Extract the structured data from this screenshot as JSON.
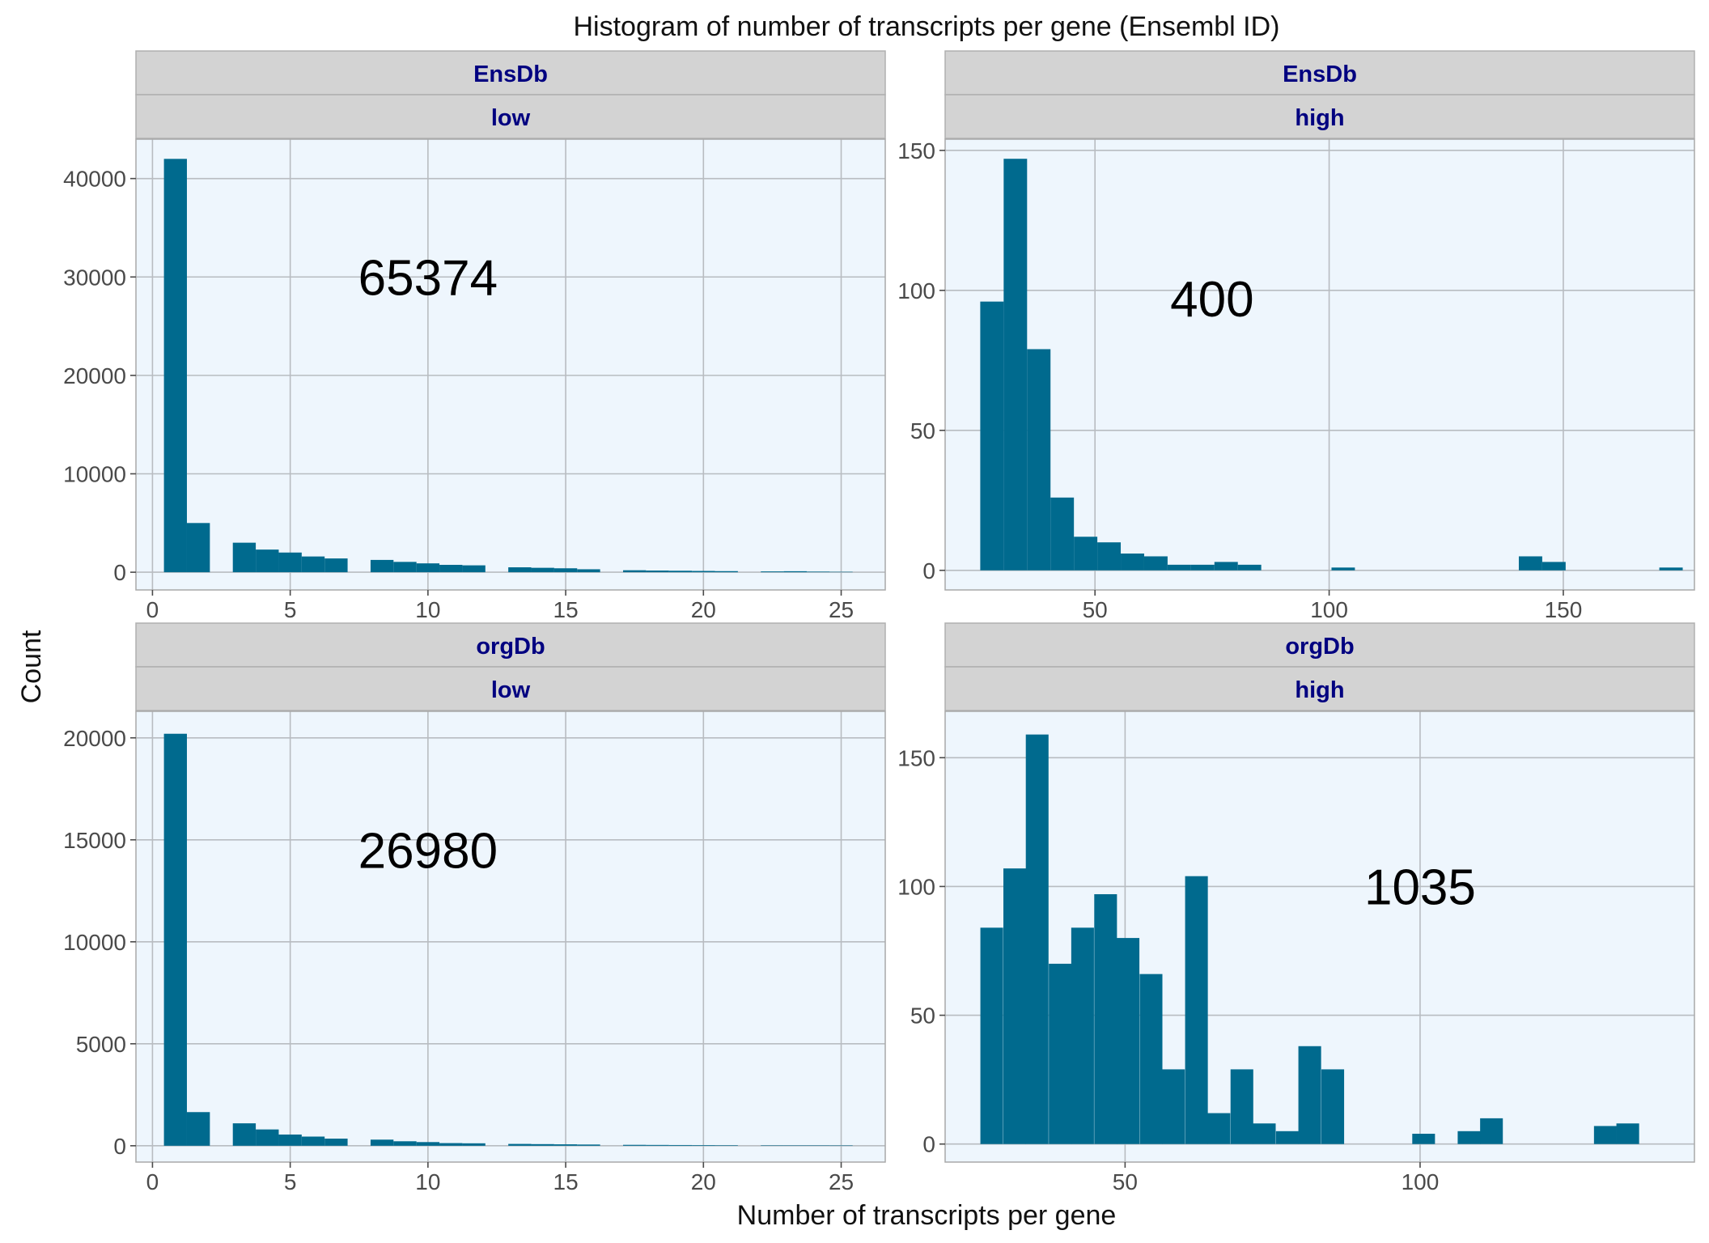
{
  "chart_data": {
    "type": "bar",
    "title": "Histogram of number of transcripts per gene (Ensembl ID)",
    "xlabel": "Number of transcripts per gene",
    "ylabel": "Count",
    "bar_color": "#006a8e",
    "panel_background": "#eef6fd",
    "strip_text_color": "#000080",
    "grid": true,
    "panels": [
      {
        "strip_top": "EnsDb",
        "strip_bottom": "low",
        "annotation": "65374",
        "annotation_at": {
          "x": 10,
          "y": 30000
        },
        "xlim": [
          -0.6,
          26.6
        ],
        "ylim": [
          -1800,
          44000
        ],
        "x_ticks": [
          0,
          5,
          10,
          15,
          20,
          25
        ],
        "y_ticks": [
          0,
          10000,
          20000,
          30000,
          40000
        ],
        "bin_width": 0.8333,
        "bins": [
          {
            "x": 0.8333,
            "count": 42000
          },
          {
            "x": 1.6667,
            "count": 5000
          },
          {
            "x": 2.5,
            "count": 0
          },
          {
            "x": 3.3333,
            "count": 3000
          },
          {
            "x": 4.1667,
            "count": 2300
          },
          {
            "x": 5.0,
            "count": 2000
          },
          {
            "x": 5.8333,
            "count": 1600
          },
          {
            "x": 6.6667,
            "count": 1400
          },
          {
            "x": 7.5,
            "count": 0
          },
          {
            "x": 8.3333,
            "count": 1250
          },
          {
            "x": 9.1667,
            "count": 1050
          },
          {
            "x": 10.0,
            "count": 900
          },
          {
            "x": 10.8333,
            "count": 750
          },
          {
            "x": 11.6667,
            "count": 700
          },
          {
            "x": 12.5,
            "count": 0
          },
          {
            "x": 13.3333,
            "count": 500
          },
          {
            "x": 14.1667,
            "count": 450
          },
          {
            "x": 15.0,
            "count": 400
          },
          {
            "x": 15.8333,
            "count": 300
          },
          {
            "x": 16.6667,
            "count": 0
          },
          {
            "x": 17.5,
            "count": 200
          },
          {
            "x": 18.3333,
            "count": 170
          },
          {
            "x": 19.1667,
            "count": 150
          },
          {
            "x": 20.0,
            "count": 130
          },
          {
            "x": 20.8333,
            "count": 110
          },
          {
            "x": 21.6667,
            "count": 0
          },
          {
            "x": 22.5,
            "count": 80
          },
          {
            "x": 23.3333,
            "count": 100
          },
          {
            "x": 24.1667,
            "count": 60
          },
          {
            "x": 25.0,
            "count": 40
          }
        ]
      },
      {
        "strip_top": "EnsDb",
        "strip_bottom": "high",
        "annotation": "400",
        "annotation_at": {
          "x": 75,
          "y": 97
        },
        "xlim": [
          18,
          178
        ],
        "ylim": [
          -7,
          154
        ],
        "x_ticks": [
          50,
          100,
          150
        ],
        "y_ticks": [
          0,
          50,
          100,
          150
        ],
        "bin_width": 5,
        "bins": [
          {
            "x": 28,
            "count": 96
          },
          {
            "x": 33,
            "count": 147
          },
          {
            "x": 38,
            "count": 79
          },
          {
            "x": 43,
            "count": 26
          },
          {
            "x": 48,
            "count": 12
          },
          {
            "x": 53,
            "count": 10
          },
          {
            "x": 58,
            "count": 6
          },
          {
            "x": 63,
            "count": 5
          },
          {
            "x": 68,
            "count": 2
          },
          {
            "x": 73,
            "count": 2
          },
          {
            "x": 78,
            "count": 3
          },
          {
            "x": 83,
            "count": 2
          },
          {
            "x": 103,
            "count": 1
          },
          {
            "x": 143,
            "count": 5
          },
          {
            "x": 148,
            "count": 3
          },
          {
            "x": 173,
            "count": 1
          }
        ]
      },
      {
        "strip_top": "orgDb",
        "strip_bottom": "low",
        "annotation": "26980",
        "annotation_at": {
          "x": 10,
          "y": 14500
        },
        "xlim": [
          -0.6,
          26.6
        ],
        "ylim": [
          -800,
          21300
        ],
        "x_ticks": [
          0,
          5,
          10,
          15,
          20,
          25
        ],
        "y_ticks": [
          0,
          5000,
          10000,
          15000,
          20000
        ],
        "bin_width": 0.8333,
        "bins": [
          {
            "x": 0.8333,
            "count": 20200
          },
          {
            "x": 1.6667,
            "count": 1650
          },
          {
            "x": 2.5,
            "count": 0
          },
          {
            "x": 3.3333,
            "count": 1100
          },
          {
            "x": 4.1667,
            "count": 800
          },
          {
            "x": 5.0,
            "count": 550
          },
          {
            "x": 5.8333,
            "count": 450
          },
          {
            "x": 6.6667,
            "count": 350
          },
          {
            "x": 7.5,
            "count": 0
          },
          {
            "x": 8.3333,
            "count": 300
          },
          {
            "x": 9.1667,
            "count": 220
          },
          {
            "x": 10.0,
            "count": 180
          },
          {
            "x": 10.8333,
            "count": 130
          },
          {
            "x": 11.6667,
            "count": 120
          },
          {
            "x": 12.5,
            "count": 0
          },
          {
            "x": 13.3333,
            "count": 90
          },
          {
            "x": 14.1667,
            "count": 80
          },
          {
            "x": 15.0,
            "count": 70
          },
          {
            "x": 15.8333,
            "count": 60
          },
          {
            "x": 16.6667,
            "count": 0
          },
          {
            "x": 17.5,
            "count": 45
          },
          {
            "x": 18.3333,
            "count": 40
          },
          {
            "x": 19.1667,
            "count": 35
          },
          {
            "x": 20.0,
            "count": 30
          },
          {
            "x": 20.8333,
            "count": 25
          },
          {
            "x": 21.6667,
            "count": 0
          },
          {
            "x": 22.5,
            "count": 20
          },
          {
            "x": 23.3333,
            "count": 18
          },
          {
            "x": 24.1667,
            "count": 15
          },
          {
            "x": 25.0,
            "count": 12
          }
        ]
      },
      {
        "strip_top": "orgDb",
        "strip_bottom": "high",
        "annotation": "1035",
        "annotation_at": {
          "x": 100,
          "y": 100
        },
        "xlim": [
          19.5,
          146.5
        ],
        "ylim": [
          -7,
          168
        ],
        "x_ticks": [
          50,
          100
        ],
        "y_ticks": [
          0,
          50,
          100,
          150
        ],
        "bin_width": 3.85,
        "bins": [
          {
            "x": 27.4,
            "count": 84
          },
          {
            "x": 31.3,
            "count": 107
          },
          {
            "x": 35.1,
            "count": 159
          },
          {
            "x": 39.0,
            "count": 70
          },
          {
            "x": 42.8,
            "count": 84
          },
          {
            "x": 46.7,
            "count": 97
          },
          {
            "x": 50.5,
            "count": 80
          },
          {
            "x": 54.4,
            "count": 66
          },
          {
            "x": 58.2,
            "count": 29
          },
          {
            "x": 62.1,
            "count": 104
          },
          {
            "x": 65.9,
            "count": 12
          },
          {
            "x": 69.8,
            "count": 29
          },
          {
            "x": 73.6,
            "count": 8
          },
          {
            "x": 77.5,
            "count": 5
          },
          {
            "x": 81.3,
            "count": 38
          },
          {
            "x": 85.2,
            "count": 29
          },
          {
            "x": 100.6,
            "count": 4
          },
          {
            "x": 108.3,
            "count": 5
          },
          {
            "x": 112.1,
            "count": 10
          },
          {
            "x": 131.4,
            "count": 7
          },
          {
            "x": 135.2,
            "count": 8
          }
        ]
      }
    ]
  }
}
